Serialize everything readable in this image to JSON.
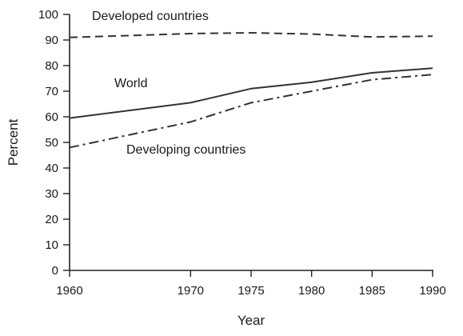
{
  "chart_data": {
    "type": "line",
    "xlabel": "Year",
    "ylabel": "Percent",
    "xlim": [
      1960,
      1990
    ],
    "ylim": [
      0,
      100
    ],
    "x_ticks": [
      "1960",
      "1970",
      "1975",
      "1980",
      "1985",
      "1990"
    ],
    "y_ticks": [
      "0",
      "10",
      "20",
      "30",
      "40",
      "50",
      "60",
      "70",
      "80",
      "90",
      "100"
    ],
    "grid": false,
    "series": [
      {
        "name": "Developed countries",
        "style": "dashed",
        "x": [
          1960,
          1970,
          1975,
          1980,
          1985,
          1990
        ],
        "values": [
          91,
          92.5,
          92.8,
          92.3,
          91.2,
          91.5
        ]
      },
      {
        "name": "World",
        "style": "solid",
        "x": [
          1960,
          1970,
          1975,
          1980,
          1985,
          1990
        ],
        "values": [
          59.5,
          65.5,
          71,
          73.5,
          77.2,
          79
        ]
      },
      {
        "name": "Developing countries",
        "style": "dash-dot",
        "x": [
          1960,
          1970,
          1975,
          1980,
          1985,
          1990
        ],
        "values": [
          48,
          58,
          65.5,
          70,
          74.5,
          76.5
        ]
      }
    ],
    "colors": {
      "line": "#333333",
      "axis": "#222222"
    }
  }
}
